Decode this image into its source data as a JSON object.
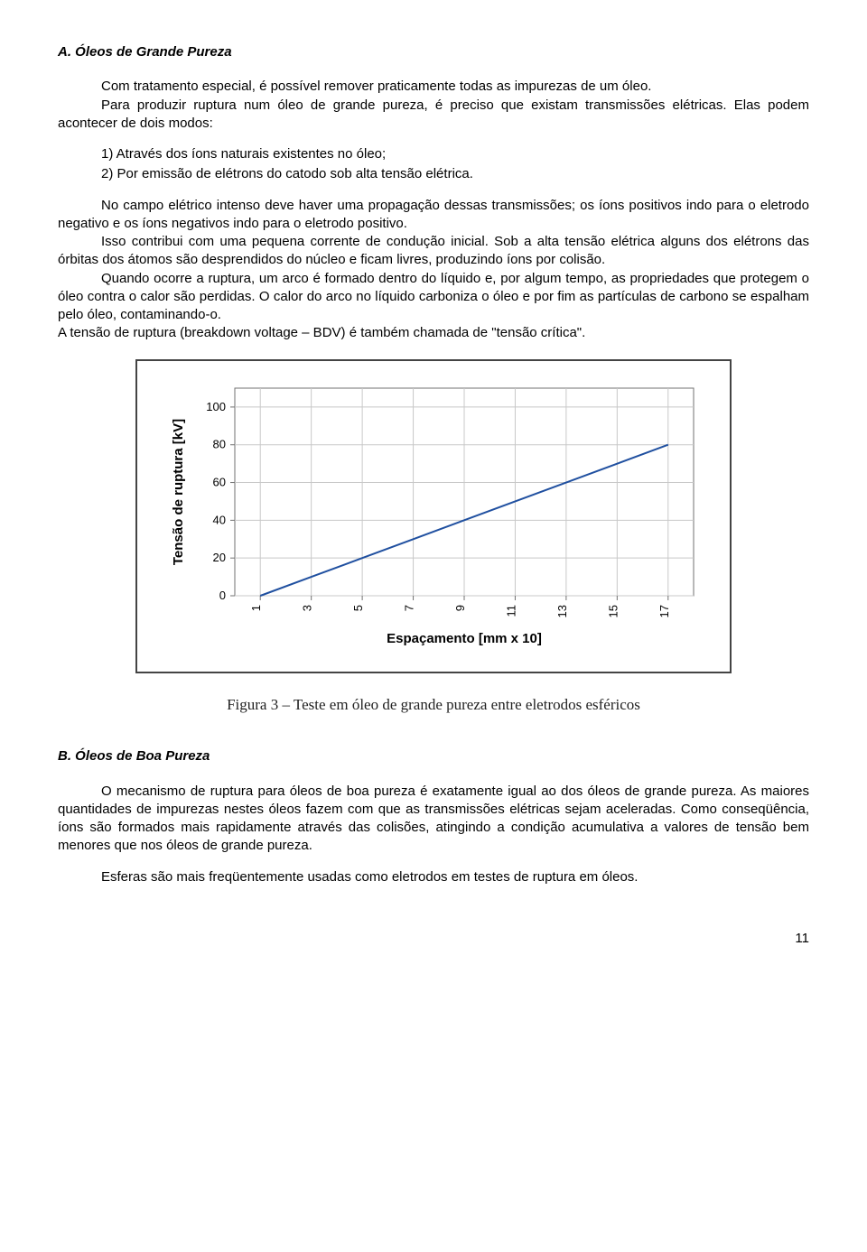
{
  "sectionA": {
    "heading": "A. Óleos de Grande Pureza",
    "p1a": "Com tratamento especial, é possível remover praticamente todas as impurezas de um óleo.",
    "p1b": "Para produzir ruptura num óleo de grande pureza, é preciso que existam transmissões elétricas. Elas podem acontecer de dois modos:",
    "li1": "1)  Através dos íons naturais existentes no óleo;",
    "li2": "2)  Por emissão de elétrons do catodo sob alta tensão elétrica.",
    "p2": "No campo elétrico intenso deve haver uma propagação dessas transmissões; os íons positivos indo para o eletrodo negativo e os íons negativos indo para o eletrodo positivo.",
    "p3": "Isso contribui com uma pequena corrente de condução inicial. Sob a alta tensão elétrica alguns dos elétrons das órbitas dos átomos são desprendidos do núcleo e ficam livres, produzindo íons por colisão.",
    "p4": "Quando ocorre a ruptura, um arco é formado dentro do líquido e, por algum tempo, as propriedades que protegem o óleo contra o calor são perdidas. O calor do arco no líquido carboniza o óleo e por fim as partículas de carbono se espalham pelo óleo, contaminando-o.",
    "p5": "A tensão de ruptura (breakdown voltage – BDV) é também chamada de \"tensão crítica\"."
  },
  "chart": {
    "type": "line",
    "ylabel_img_alt": "Tensão de ruptura [kV]",
    "xlabel": "Espaçamento [mm x 10]",
    "x_ticks": [
      "1",
      "3",
      "5",
      "7",
      "9",
      "11",
      "13",
      "15",
      "17"
    ],
    "y_ticks": [
      "0",
      "20",
      "40",
      "60",
      "80",
      "100"
    ],
    "x_values": [
      1,
      3,
      5,
      7,
      9,
      11,
      13,
      15,
      17
    ],
    "y_values": [
      0,
      10,
      20,
      30,
      40,
      50,
      60,
      70,
      80
    ],
    "ylim": [
      0,
      110
    ],
    "line_color": "#2050a0",
    "line_width": 2,
    "grid_color": "#c8c8c8",
    "axis_color": "#707070",
    "plot_bg": "#ffffff",
    "label_font_size": 15,
    "tick_font_size": 13,
    "caption": "Figura 3 – Teste em óleo de grande pureza entre eletrodos esféricos"
  },
  "sectionB": {
    "heading": "B. Óleos de Boa Pureza",
    "p1": "O mecanismo de ruptura para óleos de boa pureza é exatamente igual ao dos óleos de grande pureza. As maiores quantidades de impurezas nestes óleos fazem com que as transmissões elétricas sejam aceleradas. Como conseqüência, íons são formados mais rapidamente através das colisões, atingindo a condição acumulativa a valores de tensão bem menores que nos óleos de grande pureza.",
    "p2": "Esferas são mais freqüentemente usadas como eletrodos em testes de ruptura em óleos."
  },
  "page_number": "11"
}
